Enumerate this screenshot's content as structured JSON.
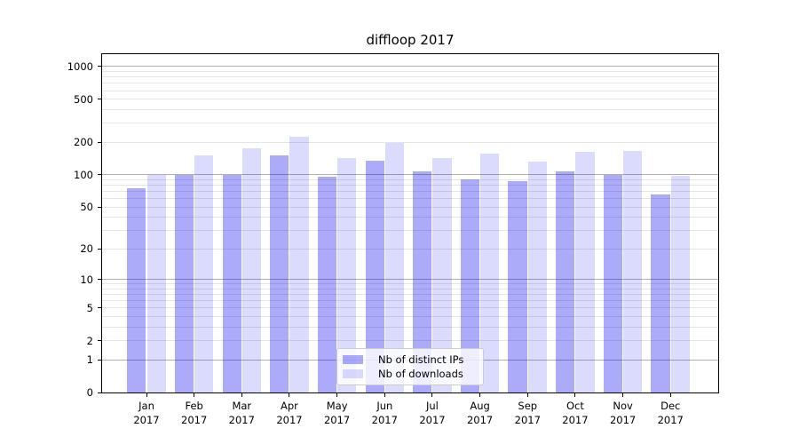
{
  "chart_data": {
    "type": "bar",
    "title": "diffloop 2017",
    "categories": [
      "Jan",
      "Feb",
      "Mar",
      "Apr",
      "May",
      "Jun",
      "Jul",
      "Aug",
      "Sep",
      "Oct",
      "Nov",
      "Dec"
    ],
    "year": "2017",
    "series": [
      {
        "name": "Nb of distinct IPs",
        "color": "#a9a9f8",
        "values": [
          75,
          100,
          100,
          150,
          96,
          135,
          108,
          90,
          88,
          108,
          100,
          65
        ]
      },
      {
        "name": "Nb of downloads",
        "color": "#dbdbfc",
        "values": [
          100,
          152,
          177,
          225,
          142,
          197,
          143,
          158,
          132,
          164,
          165,
          97
        ]
      }
    ],
    "yscale": "log1p",
    "ylim": [
      0,
      1300
    ],
    "yticks_labeled": [
      0,
      1,
      2,
      5,
      10,
      20,
      50,
      100,
      200,
      500,
      1000
    ],
    "grid": {
      "major_lines": [
        1,
        10,
        100,
        1000
      ],
      "minor_lines": [
        2,
        3,
        4,
        5,
        6,
        7,
        8,
        9,
        20,
        30,
        40,
        50,
        60,
        70,
        80,
        90,
        200,
        300,
        400,
        500,
        600,
        700,
        800,
        900
      ],
      "major_color": "#b0b0b0",
      "minor_color": "#e5e5e5"
    },
    "legend": {
      "position": "lower-center-inside"
    },
    "xlabel": "",
    "ylabel": ""
  }
}
